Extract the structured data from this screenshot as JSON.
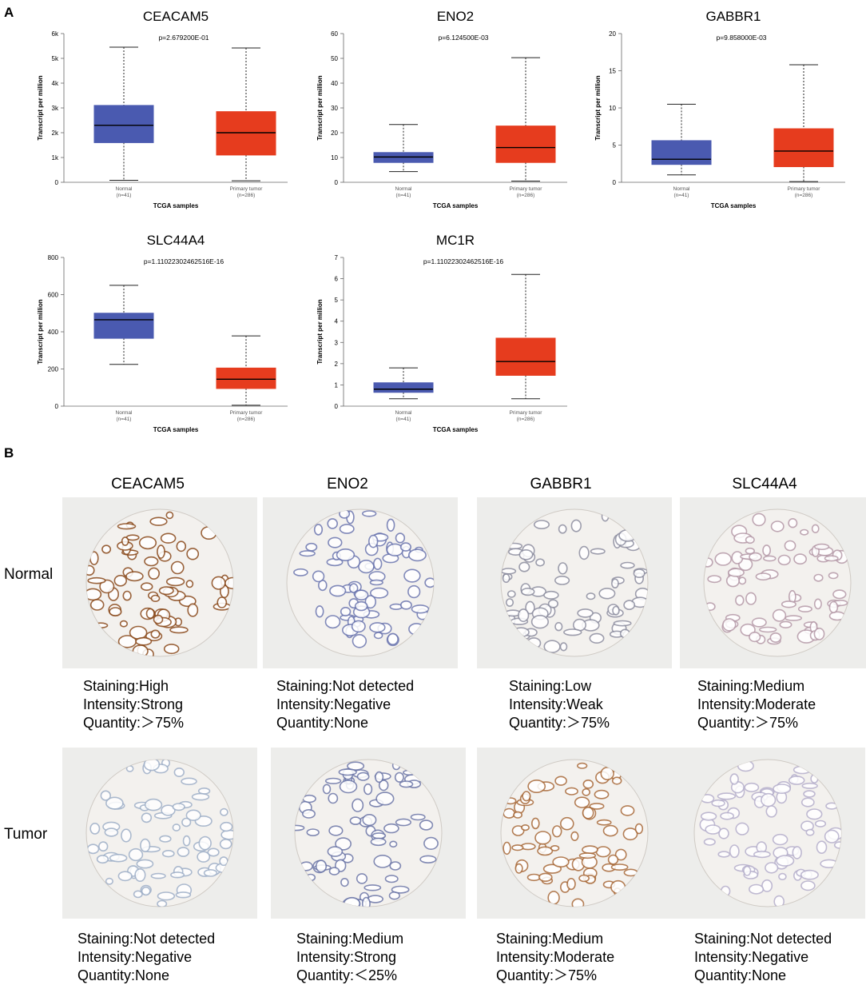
{
  "panel_letters": {
    "a": "A",
    "b": "B"
  },
  "chart_data": [
    {
      "type": "box",
      "title": "CEACAM5",
      "pvalue": "p=2.679200E-01",
      "ylabel": "Transcript per million",
      "xlabel": "TCGA samples",
      "yticks": [
        "0",
        "1k",
        "2k",
        "3k",
        "4k",
        "5k",
        "6k"
      ],
      "ylim": [
        0,
        6000
      ],
      "groups": [
        {
          "name": "Normal",
          "n": "(n=41)",
          "color": "#4a5ab0",
          "min": 80,
          "q1": 1600,
          "median": 2300,
          "q3": 3100,
          "max": 5450
        },
        {
          "name": "Primary tumor",
          "n": "(n=286)",
          "color": "#e63c1e",
          "min": 60,
          "q1": 1100,
          "median": 2000,
          "q3": 2850,
          "max": 5420
        }
      ]
    },
    {
      "type": "box",
      "title": "ENO2",
      "pvalue": "p=6.124500E-03",
      "ylabel": "Transcript per million",
      "xlabel": "TCGA samples",
      "yticks": [
        "0",
        "10",
        "20",
        "30",
        "40",
        "50",
        "60"
      ],
      "ylim": [
        0,
        60
      ],
      "groups": [
        {
          "name": "Normal",
          "n": "(n=41)",
          "color": "#4a5ab0",
          "min": 4.3,
          "q1": 8,
          "median": 10.2,
          "q3": 12,
          "max": 23.3
        },
        {
          "name": "Primary tumor",
          "n": "(n=286)",
          "color": "#e63c1e",
          "min": 0.5,
          "q1": 8,
          "median": 14,
          "q3": 22.7,
          "max": 50.3
        }
      ]
    },
    {
      "type": "box",
      "title": "GABBR1",
      "pvalue": "p=9.858000E-03",
      "ylabel": "Transcript per million",
      "xlabel": "TCGA samples",
      "yticks": [
        "0",
        "5",
        "10",
        "15",
        "20"
      ],
      "ylim": [
        0,
        20
      ],
      "groups": [
        {
          "name": "Normal",
          "n": "(n=41)",
          "color": "#4a5ab0",
          "min": 1,
          "q1": 2.4,
          "median": 3.1,
          "q3": 5.6,
          "max": 10.5
        },
        {
          "name": "Primary tumor",
          "n": "(n=286)",
          "color": "#e63c1e",
          "min": 0.1,
          "q1": 2.1,
          "median": 4.2,
          "q3": 7.2,
          "max": 15.8
        }
      ]
    },
    {
      "type": "box",
      "title": "SLC44A4",
      "pvalue": "p=1.11022302462516E-16",
      "ylabel": "Transcript per million",
      "xlabel": "TCGA samples",
      "yticks": [
        "0",
        "200",
        "400",
        "600",
        "800"
      ],
      "ylim": [
        0,
        800
      ],
      "groups": [
        {
          "name": "Normal",
          "n": "(n=41)",
          "color": "#4a5ab0",
          "min": 225,
          "q1": 365,
          "median": 465,
          "q3": 500,
          "max": 650
        },
        {
          "name": "Primary tumor",
          "n": "(n=286)",
          "color": "#e63c1e",
          "min": 5,
          "q1": 95,
          "median": 145,
          "q3": 205,
          "max": 378
        }
      ]
    },
    {
      "type": "box",
      "title": "MC1R",
      "pvalue": "p=1.11022302462516E-16",
      "ylabel": "Transcript per million",
      "xlabel": "TCGA samples",
      "yticks": [
        "0",
        "1",
        "2",
        "3",
        "4",
        "5",
        "6",
        "7"
      ],
      "ylim": [
        0,
        7
      ],
      "groups": [
        {
          "name": "Normal",
          "n": "(n=41)",
          "color": "#4a5ab0",
          "min": 0.35,
          "q1": 0.65,
          "median": 0.8,
          "q3": 1.1,
          "max": 1.8
        },
        {
          "name": "Primary tumor",
          "n": "(n=286)",
          "color": "#e63c1e",
          "min": 0.35,
          "q1": 1.45,
          "median": 2.1,
          "q3": 3.2,
          "max": 6.2
        }
      ]
    }
  ],
  "ihc": {
    "genes": [
      "CEACAM5",
      "ENO2",
      "GABBR1",
      "SLC44A4"
    ],
    "row_labels": [
      "Normal",
      "Tumor"
    ],
    "normal": [
      {
        "staining": "Staining:High",
        "intensity": "Intensity:Strong",
        "quantity": "Quantity:＞75%"
      },
      {
        "staining": "Staining:Not detected",
        "intensity": "Intensity:Negative",
        "quantity": "Quantity:None"
      },
      {
        "staining": "Staining:Low",
        "intensity": "Intensity:Weak",
        "quantity": "Quantity:＞75%"
      },
      {
        "staining": "Staining:Medium",
        "intensity": "Intensity:Moderate",
        "quantity": "Quantity:＞75%"
      }
    ],
    "tumor": [
      {
        "staining": "Staining:Not detected",
        "intensity": "Intensity:Negative",
        "quantity": "Quantity:None"
      },
      {
        "staining": "Staining:Medium",
        "intensity": "Intensity:Strong",
        "quantity": "Quantity:＜25%"
      },
      {
        "staining": "Staining:Medium",
        "intensity": "Intensity:Moderate",
        "quantity": "Quantity:＞75%"
      },
      {
        "staining": "Staining:Not detected",
        "intensity": "Intensity:Negative",
        "quantity": "Quantity:None"
      }
    ]
  },
  "tissue_colors": {
    "normal": [
      [
        "#8a4a1c",
        "#ffffff"
      ],
      [
        "#6d77b0",
        "#ffffff"
      ],
      [
        "#8e8fa0",
        "#ffffff"
      ],
      [
        "#b59aa8",
        "#ffffff"
      ]
    ],
    "tumor": [
      [
        "#9fb0c8",
        "#ffffff"
      ],
      [
        "#6e78a8",
        "#ffffff"
      ],
      [
        "#a86a3a",
        "#ffffff"
      ],
      [
        "#b6b0cc",
        "#ffffff"
      ]
    ]
  }
}
